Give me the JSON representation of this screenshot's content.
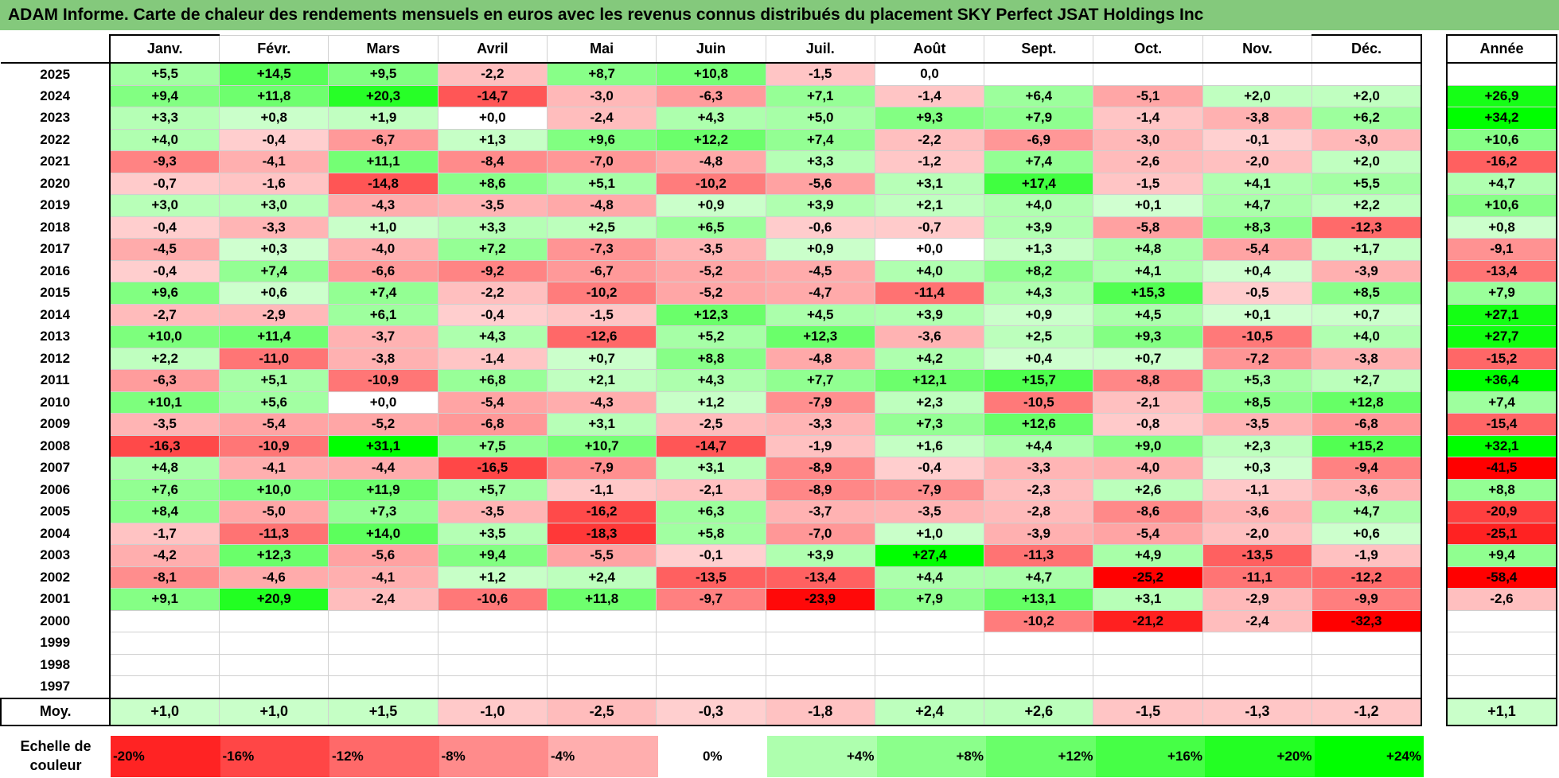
{
  "title": "ADAM Informe. Carte de chaleur des rendements mensuels en euros avec les revenus connus distribués du placement SKY Perfect JSAT Holdings Inc",
  "chart_data": {
    "type": "heatmap",
    "columns": [
      "Janv.",
      "Févr.",
      "Mars",
      "Avril",
      "Mai",
      "Juin",
      "Juil.",
      "Août",
      "Sept.",
      "Oct.",
      "Nov.",
      "Déc."
    ],
    "year_column_label": "Année",
    "rows": [
      {
        "year": "2025",
        "values": [
          "+5,5",
          "+14,5",
          "+9,5",
          "-2,2",
          "+8,7",
          "+10,8",
          "-1,5",
          "0,0",
          "",
          "",
          "",
          ""
        ],
        "annual": ""
      },
      {
        "year": "2024",
        "values": [
          "+9,4",
          "+11,8",
          "+20,3",
          "-14,7",
          "-3,0",
          "-6,3",
          "+7,1",
          "-1,4",
          "+6,4",
          "-5,1",
          "+2,0",
          "+2,0"
        ],
        "annual": "+26,9"
      },
      {
        "year": "2023",
        "values": [
          "+3,3",
          "+0,8",
          "+1,9",
          "+0,0",
          "-2,4",
          "+4,3",
          "+5,0",
          "+9,3",
          "+7,9",
          "-1,4",
          "-3,8",
          "+6,2"
        ],
        "annual": "+34,2"
      },
      {
        "year": "2022",
        "values": [
          "+4,0",
          "-0,4",
          "-6,7",
          "+1,3",
          "+9,6",
          "+12,2",
          "+7,4",
          "-2,2",
          "-6,9",
          "-3,0",
          "-0,1",
          "-3,0"
        ],
        "annual": "+10,6"
      },
      {
        "year": "2021",
        "values": [
          "-9,3",
          "-4,1",
          "+11,1",
          "-8,4",
          "-7,0",
          "-4,8",
          "+3,3",
          "-1,2",
          "+7,4",
          "-2,6",
          "-2,0",
          "+2,0"
        ],
        "annual": "-16,2"
      },
      {
        "year": "2020",
        "values": [
          "-0,7",
          "-1,6",
          "-14,8",
          "+8,6",
          "+5,1",
          "-10,2",
          "-5,6",
          "+3,1",
          "+17,4",
          "-1,5",
          "+4,1",
          "+5,5"
        ],
        "annual": "+4,7"
      },
      {
        "year": "2019",
        "values": [
          "+3,0",
          "+3,0",
          "-4,3",
          "-3,5",
          "-4,8",
          "+0,9",
          "+3,9",
          "+2,1",
          "+4,0",
          "+0,1",
          "+4,7",
          "+2,2"
        ],
        "annual": "+10,6"
      },
      {
        "year": "2018",
        "values": [
          "-0,4",
          "-3,3",
          "+1,0",
          "+3,3",
          "+2,5",
          "+6,5",
          "-0,6",
          "-0,7",
          "+3,9",
          "-5,8",
          "+8,3",
          "-12,3"
        ],
        "annual": "+0,8"
      },
      {
        "year": "2017",
        "values": [
          "-4,5",
          "+0,3",
          "-4,0",
          "+7,2",
          "-7,3",
          "-3,5",
          "+0,9",
          "+0,0",
          "+1,3",
          "+4,8",
          "-5,4",
          "+1,7"
        ],
        "annual": "-9,1"
      },
      {
        "year": "2016",
        "values": [
          "-0,4",
          "+7,4",
          "-6,6",
          "-9,2",
          "-6,7",
          "-5,2",
          "-4,5",
          "+4,0",
          "+8,2",
          "+4,1",
          "+0,4",
          "-3,9"
        ],
        "annual": "-13,4"
      },
      {
        "year": "2015",
        "values": [
          "+9,6",
          "+0,6",
          "+7,4",
          "-2,2",
          "-10,2",
          "-5,2",
          "-4,7",
          "-11,4",
          "+4,3",
          "+15,3",
          "-0,5",
          "+8,5"
        ],
        "annual": "+7,9"
      },
      {
        "year": "2014",
        "values": [
          "-2,7",
          "-2,9",
          "+6,1",
          "-0,4",
          "-1,5",
          "+12,3",
          "+4,5",
          "+3,9",
          "+0,9",
          "+4,5",
          "+0,1",
          "+0,7"
        ],
        "annual": "+27,1"
      },
      {
        "year": "2013",
        "values": [
          "+10,0",
          "+11,4",
          "-3,7",
          "+4,3",
          "-12,6",
          "+5,2",
          "+12,3",
          "-3,6",
          "+2,5",
          "+9,3",
          "-10,5",
          "+4,0"
        ],
        "annual": "+27,7"
      },
      {
        "year": "2012",
        "values": [
          "+2,2",
          "-11,0",
          "-3,8",
          "-1,4",
          "+0,7",
          "+8,8",
          "-4,8",
          "+4,2",
          "+0,4",
          "+0,7",
          "-7,2",
          "-3,8"
        ],
        "annual": "-15,2"
      },
      {
        "year": "2011",
        "values": [
          "-6,3",
          "+5,1",
          "-10,9",
          "+6,8",
          "+2,1",
          "+4,3",
          "+7,7",
          "+12,1",
          "+15,7",
          "-8,8",
          "+5,3",
          "+2,7"
        ],
        "annual": "+36,4"
      },
      {
        "year": "2010",
        "values": [
          "+10,1",
          "+5,6",
          "+0,0",
          "-5,4",
          "-4,3",
          "+1,2",
          "-7,9",
          "+2,3",
          "-10,5",
          "-2,1",
          "+8,5",
          "+12,8"
        ],
        "annual": "+7,4"
      },
      {
        "year": "2009",
        "values": [
          "-3,5",
          "-5,4",
          "-5,2",
          "-6,8",
          "+3,1",
          "-2,5",
          "-3,3",
          "+7,3",
          "+12,6",
          "-0,8",
          "-3,5",
          "-6,8"
        ],
        "annual": "-15,4"
      },
      {
        "year": "2008",
        "values": [
          "-16,3",
          "-10,9",
          "+31,1",
          "+7,5",
          "+10,7",
          "-14,7",
          "-1,9",
          "+1,6",
          "+4,4",
          "+9,0",
          "+2,3",
          "+15,2"
        ],
        "annual": "+32,1"
      },
      {
        "year": "2007",
        "values": [
          "+4,8",
          "-4,1",
          "-4,4",
          "-16,5",
          "-7,9",
          "+3,1",
          "-8,9",
          "-0,4",
          "-3,3",
          "-4,0",
          "+0,3",
          "-9,4"
        ],
        "annual": "-41,5"
      },
      {
        "year": "2006",
        "values": [
          "+7,6",
          "+10,0",
          "+11,9",
          "+5,7",
          "-1,1",
          "-2,1",
          "-8,9",
          "-7,9",
          "-2,3",
          "+2,6",
          "-1,1",
          "-3,6"
        ],
        "annual": "+8,8"
      },
      {
        "year": "2005",
        "values": [
          "+8,4",
          "-5,0",
          "+7,3",
          "-3,5",
          "-16,2",
          "+6,3",
          "-3,7",
          "-3,5",
          "-2,8",
          "-8,6",
          "-3,6",
          "+4,7"
        ],
        "annual": "-20,9"
      },
      {
        "year": "2004",
        "values": [
          "-1,7",
          "-11,3",
          "+14,0",
          "+3,5",
          "-18,3",
          "+5,8",
          "-7,0",
          "+1,0",
          "-3,9",
          "-5,4",
          "-2,0",
          "+0,6"
        ],
        "annual": "-25,1"
      },
      {
        "year": "2003",
        "values": [
          "-4,2",
          "+12,3",
          "-5,6",
          "+9,4",
          "-5,5",
          "-0,1",
          "+3,9",
          "+27,4",
          "-11,3",
          "+4,9",
          "-13,5",
          "-1,9"
        ],
        "annual": "+9,4"
      },
      {
        "year": "2002",
        "values": [
          "-8,1",
          "-4,6",
          "-4,1",
          "+1,2",
          "+2,4",
          "-13,5",
          "-13,4",
          "+4,4",
          "+4,7",
          "-25,2",
          "-11,1",
          "-12,2"
        ],
        "annual": "-58,4"
      },
      {
        "year": "2001",
        "values": [
          "+9,1",
          "+20,9",
          "-2,4",
          "-10,6",
          "+11,8",
          "-9,7",
          "-23,9",
          "+7,9",
          "+13,1",
          "+3,1",
          "-2,9",
          "-9,9"
        ],
        "annual": "-2,6"
      },
      {
        "year": "2000",
        "values": [
          "",
          "",
          "",
          "",
          "",
          "",
          "",
          "",
          "-10,2",
          "-21,2",
          "-2,4",
          "-32,3"
        ],
        "annual": ""
      },
      {
        "year": "1999",
        "values": [
          "",
          "",
          "",
          "",
          "",
          "",
          "",
          "",
          "",
          "",
          "",
          ""
        ],
        "annual": ""
      },
      {
        "year": "1998",
        "values": [
          "",
          "",
          "",
          "",
          "",
          "",
          "",
          "",
          "",
          "",
          "",
          ""
        ],
        "annual": ""
      },
      {
        "year": "1997",
        "values": [
          "",
          "",
          "",
          "",
          "",
          "",
          "",
          "",
          "",
          "",
          "",
          ""
        ],
        "annual": ""
      }
    ],
    "average_label": "Moy.",
    "average": [
      "+1,0",
      "+1,0",
      "+1,5",
      "-1,0",
      "-2,5",
      "-0,3",
      "-1,8",
      "+2,4",
      "+2,6",
      "-1,5",
      "-1,3",
      "-1,2"
    ],
    "average_annual": "+1,1",
    "scale_label": "Echelle de couleur",
    "scale": [
      {
        "label": "-20%",
        "value": -20
      },
      {
        "label": "-16%",
        "value": -16
      },
      {
        "label": "-12%",
        "value": -12
      },
      {
        "label": "-8%",
        "value": -8
      },
      {
        "label": "-4%",
        "value": -4
      },
      {
        "label": "0%",
        "value": 0
      },
      {
        "label": "+4%",
        "value": 4
      },
      {
        "label": "+8%",
        "value": 8
      },
      {
        "label": "+12%",
        "value": 12
      },
      {
        "label": "+16%",
        "value": 16
      },
      {
        "label": "+20%",
        "value": 20
      },
      {
        "label": "+24%",
        "value": 24
      }
    ],
    "colors": {
      "negative_max": "#ff0000",
      "positive_max": "#00ff00",
      "neutral": "#ffffff",
      "title_bar": "#84c97c"
    }
  }
}
